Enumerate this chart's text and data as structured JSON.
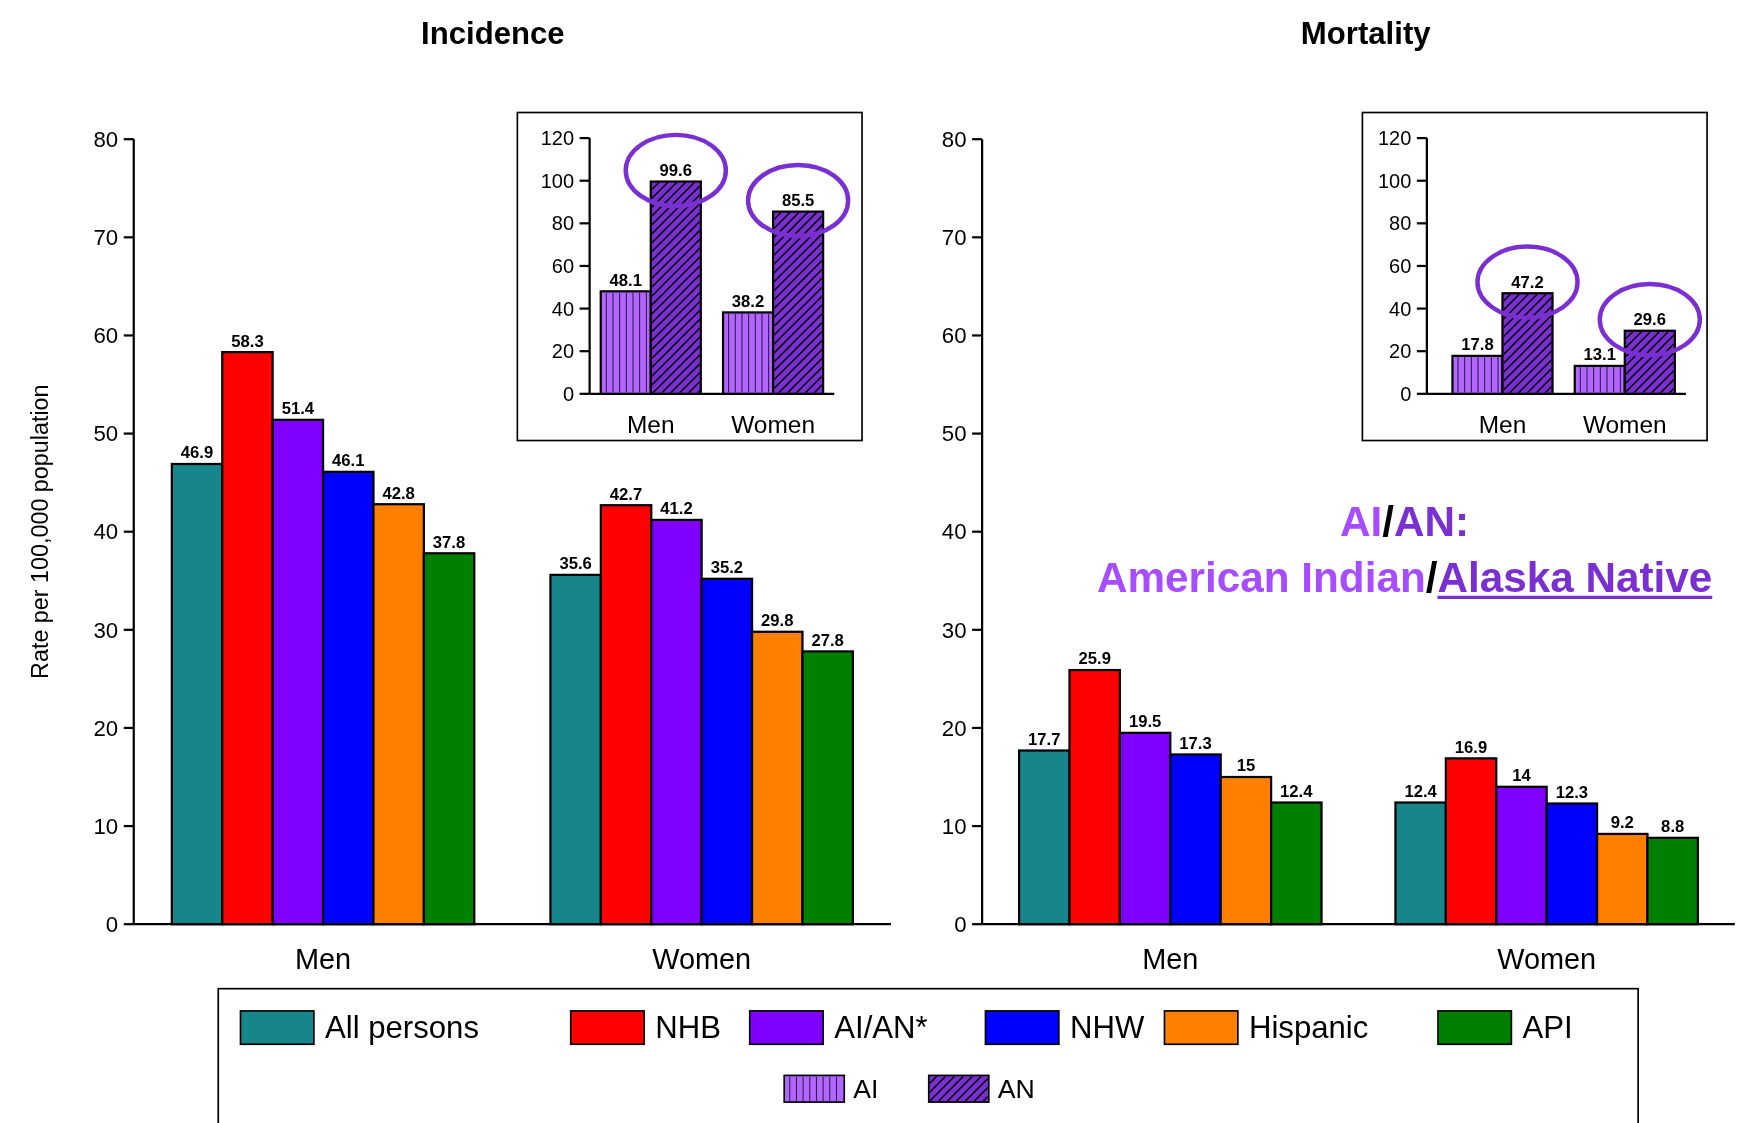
{
  "chart_data": [
    {
      "type": "bar",
      "title": "Incidence",
      "ylabel": "Rate per 100,000 population",
      "categories": [
        "Men",
        "Women"
      ],
      "ylim": [
        0,
        80
      ],
      "yticks": [
        0,
        10,
        20,
        30,
        40,
        50,
        60,
        70,
        80
      ],
      "data_labels": true,
      "legend": "bottom",
      "series": [
        {
          "name": "All persons",
          "color": "#17868a",
          "values": [
            46.9,
            35.6
          ]
        },
        {
          "name": "NHB",
          "color": "#ff0000",
          "values": [
            58.3,
            42.7
          ]
        },
        {
          "name": "AI/AN*",
          "color": "#8000ff",
          "values": [
            51.4,
            41.2
          ]
        },
        {
          "name": "NHW",
          "color": "#0000ff",
          "values": [
            46.1,
            35.2
          ]
        },
        {
          "name": "Hispanic",
          "color": "#ff8000",
          "values": [
            42.8,
            29.8
          ]
        },
        {
          "name": "API",
          "color": "#008000",
          "values": [
            37.8,
            27.8
          ]
        }
      ]
    },
    {
      "type": "bar",
      "title": "Mortality",
      "categories": [
        "Men",
        "Women"
      ],
      "ylim": [
        0,
        80
      ],
      "yticks": [
        0,
        10,
        20,
        30,
        40,
        50,
        60,
        70,
        80
      ],
      "data_labels": true,
      "annotations": [
        "AI/AN:",
        "American Indian/Alaska Native"
      ],
      "series": [
        {
          "color": "#17868a",
          "values": [
            17.7,
            12.4
          ]
        },
        {
          "color": "#ff0000",
          "values": [
            25.9,
            16.9
          ]
        },
        {
          "color": "#8000ff",
          "values": [
            19.5,
            14
          ]
        },
        {
          "color": "#0000ff",
          "values": [
            17.3,
            12.3
          ]
        },
        {
          "color": "#ff8000",
          "values": [
            15,
            9.2
          ]
        },
        {
          "color": "#008000",
          "values": [
            12.4,
            8.8
          ]
        }
      ]
    },
    {
      "type": "bar",
      "categories": [
        "Men",
        "Women"
      ],
      "ylim": [
        0,
        120
      ],
      "yticks": [
        0,
        20,
        40,
        60,
        80,
        100,
        120
      ],
      "data_labels": true,
      "legend": "bottom",
      "series": [
        {
          "name": "AI",
          "color": "#b266ff",
          "values": [
            48.1,
            38.2
          ]
        },
        {
          "name": "AN",
          "color": "#7a2fd0",
          "values": [
            99.6,
            85.5
          ]
        }
      ]
    },
    {
      "type": "bar",
      "categories": [
        "Men",
        "Women"
      ],
      "ylim": [
        0,
        120
      ],
      "yticks": [
        0,
        20,
        40,
        60,
        80,
        100,
        120
      ],
      "data_labels": true,
      "series": [
        {
          "color": "#b266ff",
          "values": [
            17.8,
            13.1
          ]
        },
        {
          "color": "#7a2fd0",
          "values": [
            47.2,
            29.6
          ]
        }
      ]
    }
  ]
}
